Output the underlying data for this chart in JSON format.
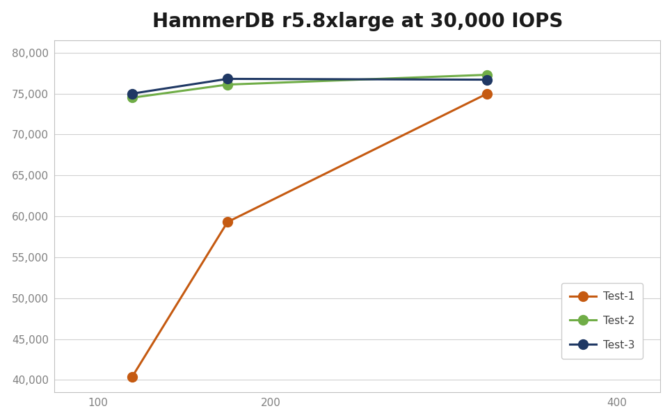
{
  "title": "HammerDB r5.8xlarge at 30,000 IOPS",
  "x_values": [
    120,
    175,
    325
  ],
  "series": [
    {
      "name": "Test-1",
      "y": [
        40400,
        59300,
        75000
      ],
      "color": "#C55A11",
      "marker": "o",
      "zorder": 3
    },
    {
      "name": "Test-2",
      "y": [
        74500,
        76100,
        77300
      ],
      "color": "#70AD47",
      "marker": "o",
      "zorder": 4
    },
    {
      "name": "Test-3",
      "y": [
        75000,
        76800,
        76700
      ],
      "color": "#1F3864",
      "marker": "o",
      "zorder": 5
    }
  ],
  "xlim": [
    75,
    425
  ],
  "ylim": [
    38500,
    81500
  ],
  "xticks": [
    100,
    200,
    400
  ],
  "yticks": [
    40000,
    45000,
    50000,
    55000,
    60000,
    65000,
    70000,
    75000,
    80000
  ],
  "background_color": "#ffffff",
  "plot_bg_color": "#ffffff",
  "grid_color": "#D0D0D0",
  "spine_color": "#C0C0C0",
  "title_fontsize": 20,
  "legend_fontsize": 11,
  "tick_fontsize": 11,
  "tick_color": "#808080",
  "marker_size": 10,
  "line_width": 2.2
}
